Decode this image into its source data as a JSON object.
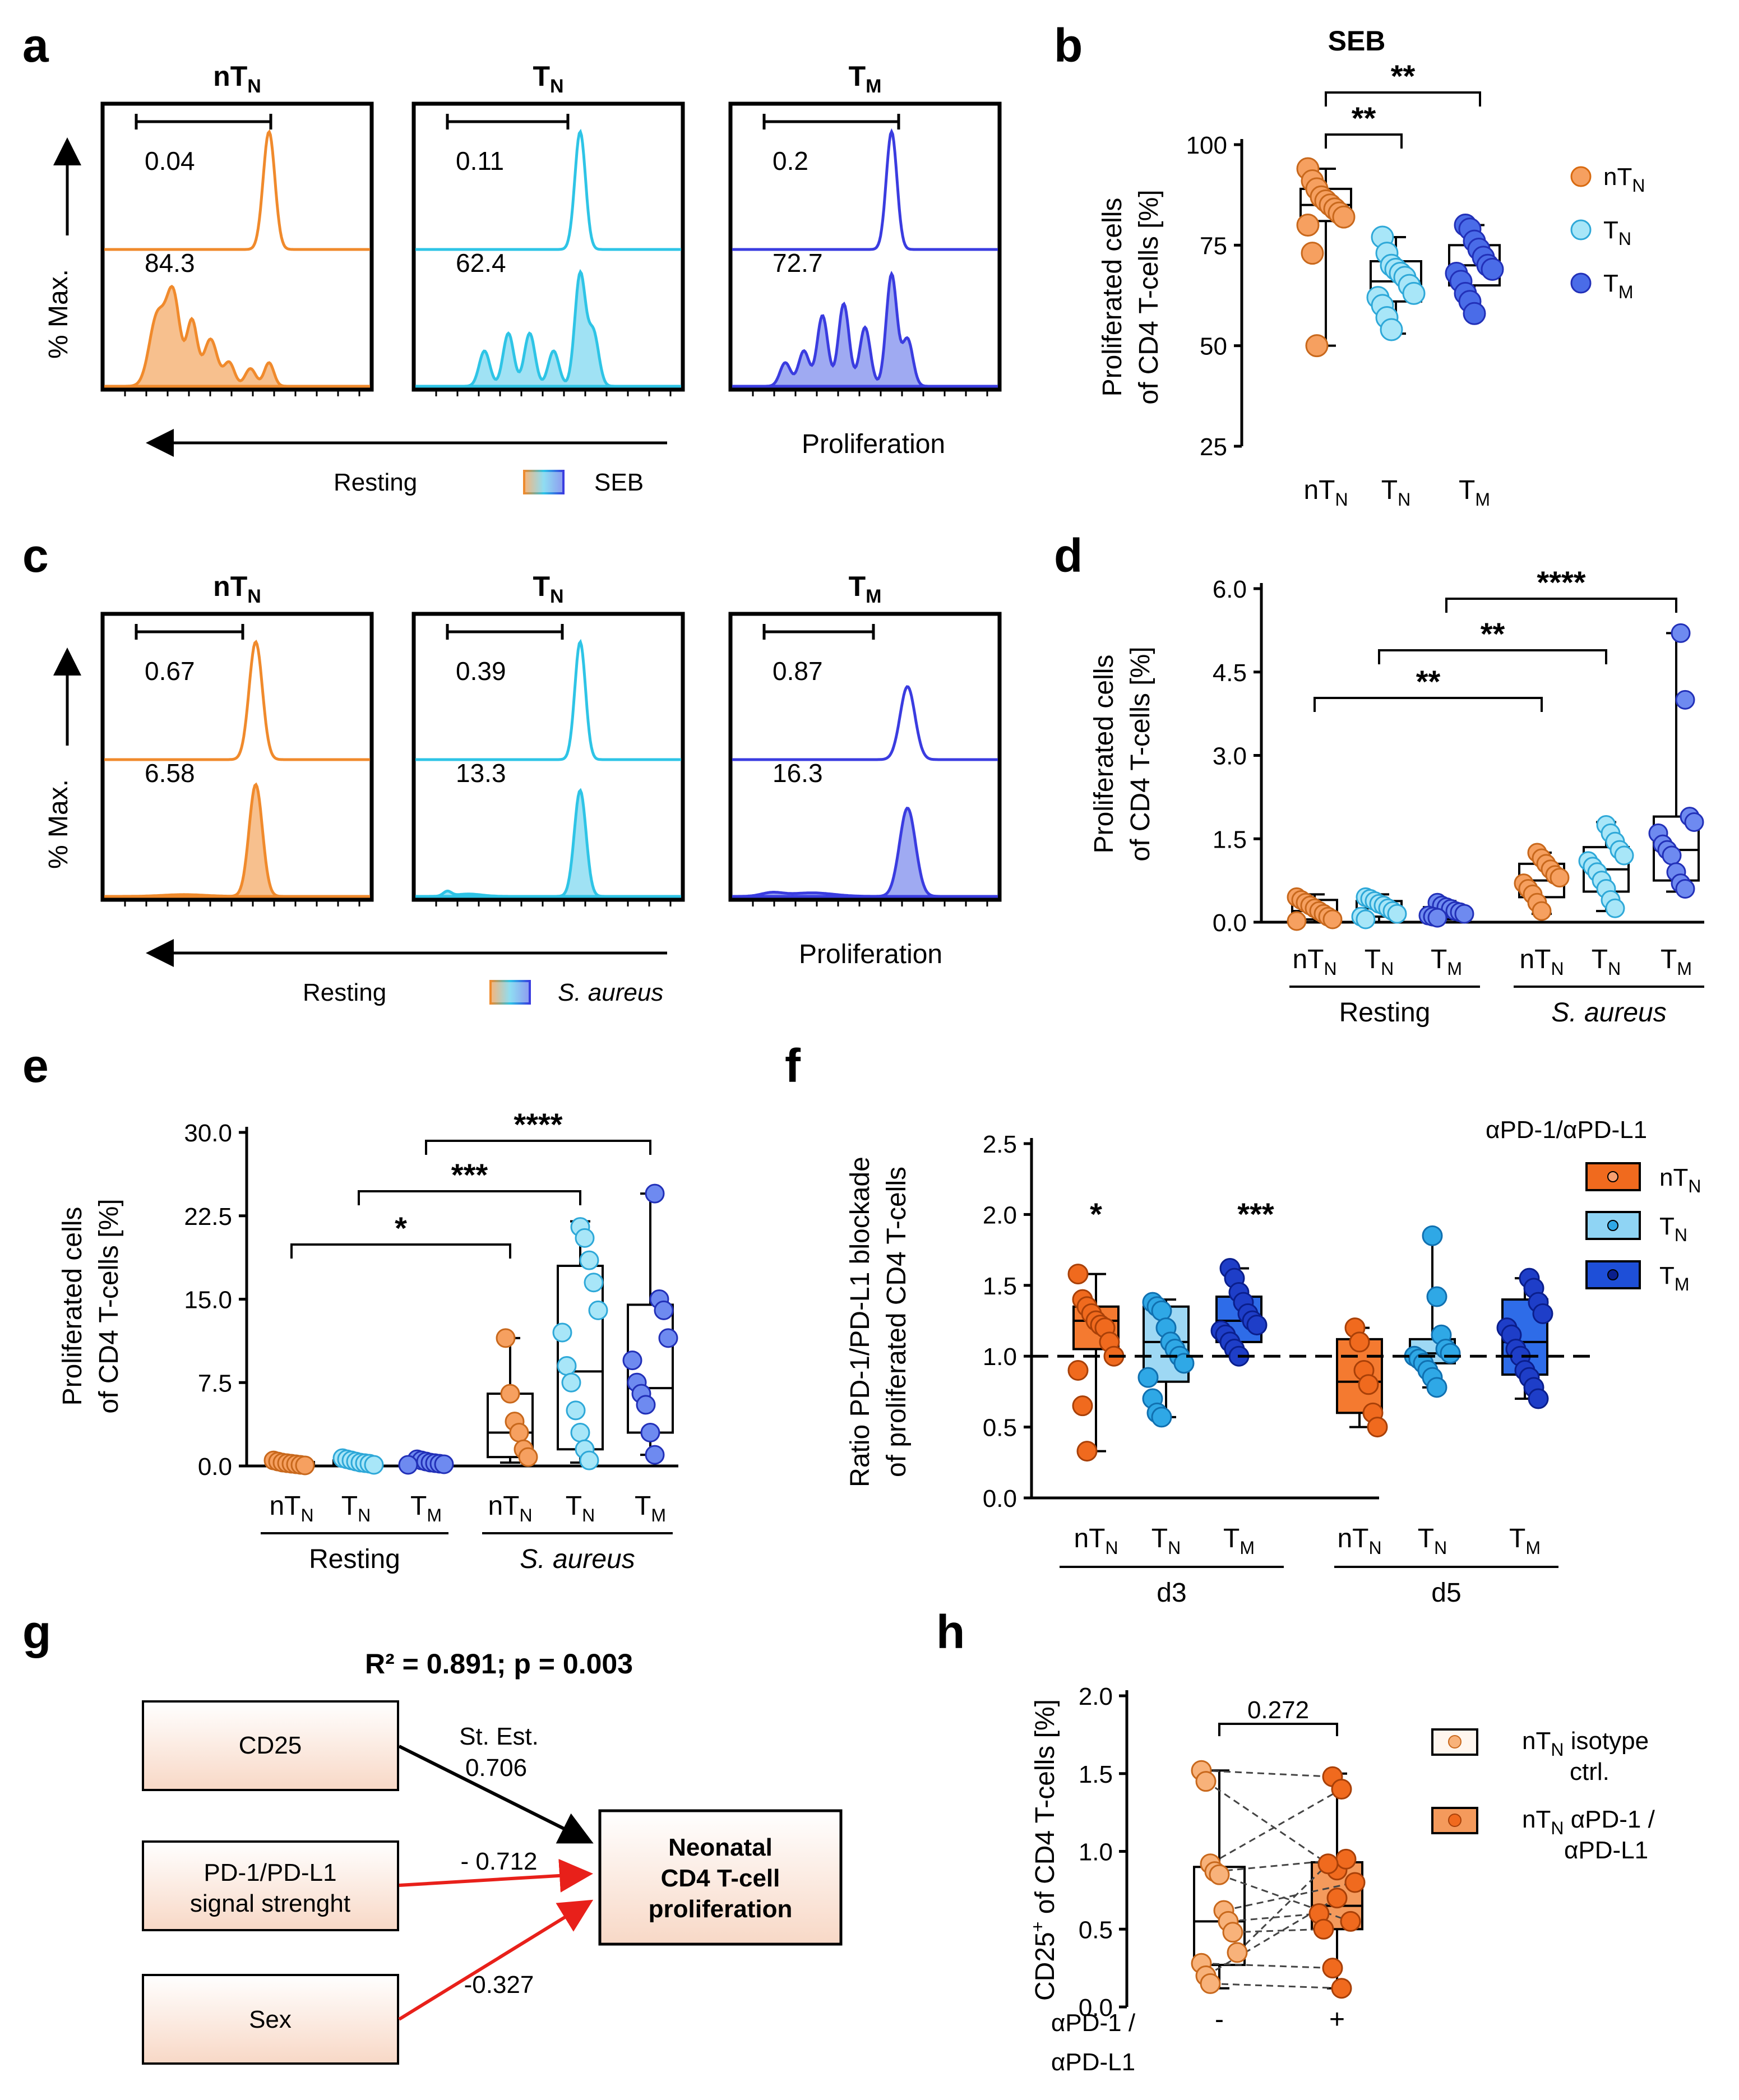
{
  "colors": {
    "nTN": "#F08A2C",
    "nTN_fill": "#F6B57A",
    "TN": "#2EC4E6",
    "TN_fill": "#8FDDF2",
    "TM": "#3A3CE0",
    "TM_fill": "#8E9BF0",
    "f_nTN": "#F06A1E",
    "f_TN": "#2FA8E6",
    "f_TM": "#1E4FD8",
    "red": "#E8201A",
    "boxfill": "#FBE6DA"
  },
  "labels": {
    "a": "a",
    "b": "b",
    "c": "c",
    "d": "d",
    "e": "e",
    "f": "f",
    "g": "g",
    "h": "h",
    "pct_max": "% Max.",
    "proliferation": "Proliferation",
    "resting": "Resting",
    "seb": "SEB",
    "saureus": "S. aureus",
    "y_prolif_1": "Proliferated cells",
    "y_prolif_2": "of CD4 T-cells [%]",
    "y_f_1": "Ratio PD-1/PD-L1 blockade",
    "y_f_2": "of proliferated CD4 T-cells",
    "f_legend_title": "αPD-1/αPD-L1",
    "d3": "d3",
    "d5": "d5",
    "h_y_main": "of CD4 T-cells [%]",
    "h_x_1": "αPD-1 /",
    "h_x_2": "αPD-L1",
    "h_minus": "-",
    "h_plus": "+",
    "h_leg1_a": "nT",
    "h_leg1_b": " isotype",
    "h_leg1_c": "ctrl.",
    "h_leg2_a": "nT",
    "h_leg2_b": " αPD-1 /",
    "h_leg2_c": "αPD-L1",
    "h_p": "0.272",
    "sub_N": "N",
    "sub_M": "M"
  },
  "panel_a": {
    "titles": [
      "nT",
      "T",
      "T"
    ],
    "subs": [
      "N",
      "N",
      "M"
    ],
    "upper_values": [
      "0.04",
      "0.11",
      "0.2"
    ],
    "lower_values": [
      "84.3",
      "62.4",
      "72.7"
    ],
    "condition": "SEB"
  },
  "panel_b": {
    "title": "SEB",
    "stars": [
      "**",
      "**"
    ],
    "legend": [
      "nT",
      "T",
      "T"
    ]
  },
  "panel_c": {
    "titles": [
      "nT",
      "T",
      "T"
    ],
    "subs": [
      "N",
      "N",
      "M"
    ],
    "upper_values": [
      "0.67",
      "0.39",
      "0.87"
    ],
    "lower_values": [
      "6.58",
      "13.3",
      "16.3"
    ],
    "condition": "S. aureus"
  },
  "panel_d": {
    "stars": [
      "**",
      "**",
      "****"
    ]
  },
  "panel_e": {
    "stars": [
      "*",
      "***",
      "****"
    ]
  },
  "panel_f": {
    "stars": [
      "*",
      "***"
    ]
  },
  "panel_g": {
    "header": "R² = 0.891; p = 0.003",
    "box1": "CD25",
    "box2a": "PD-1/PD-L1",
    "box2b": "signal strenght",
    "box3": "Sex",
    "target1": "Neonatal",
    "target2": "CD4  T-cell",
    "target3": "proliferation",
    "est_label": "St. Est.",
    "est1": "0.706",
    "est2": "- 0.712",
    "est3": "-0.327"
  },
  "chart_data": [
    {
      "id": "b",
      "type": "box",
      "title": "SEB",
      "ylabel": "Proliferated cells of CD4 T-cells [%]",
      "categories": [
        "nTN",
        "TN",
        "TM"
      ],
      "ylim": [
        25,
        100
      ],
      "yticks": [
        "25",
        "50",
        "75",
        "100"
      ],
      "series": [
        {
          "name": "nTN",
          "values": [
            94,
            91,
            89,
            87,
            86,
            85,
            84,
            83,
            82,
            80,
            73,
            50
          ],
          "box": [
            50,
            81,
            85,
            89,
            94
          ]
        },
        {
          "name": "TN",
          "values": [
            77,
            73,
            70,
            69,
            68,
            67,
            65,
            63,
            62,
            60,
            57,
            54
          ],
          "box": [
            53,
            61,
            66,
            71,
            77
          ]
        },
        {
          "name": "TM",
          "values": [
            80,
            79,
            76,
            74,
            72,
            70,
            69,
            68,
            66,
            63,
            61,
            58
          ],
          "box": [
            57,
            65,
            70,
            75,
            80
          ]
        }
      ],
      "comparisons": [
        [
          "nTN",
          "TN",
          "**"
        ],
        [
          "nTN",
          "TM",
          "**"
        ]
      ]
    },
    {
      "id": "d",
      "type": "box",
      "ylabel": "Proliferated cells of CD4 T-cells [%]",
      "groups": [
        "Resting",
        "S. aureus"
      ],
      "categories": [
        "nTN",
        "TN",
        "TM",
        "nTN",
        "TN",
        "TM"
      ],
      "ylim": [
        0,
        6
      ],
      "yticks": [
        "0.0",
        "1.5",
        "3.0",
        "4.5",
        "6.0"
      ],
      "series": [
        {
          "name": "Resting nTN",
          "values": [
            0.45,
            0.4,
            0.35,
            0.3,
            0.25,
            0.2,
            0.15,
            0.1,
            0.05,
            0.02
          ],
          "box": [
            0.0,
            0.05,
            0.2,
            0.4,
            0.5
          ]
        },
        {
          "name": "Resting TN",
          "values": [
            0.45,
            0.42,
            0.38,
            0.33,
            0.3,
            0.25,
            0.2,
            0.15,
            0.1,
            0.05
          ],
          "box": [
            0.0,
            0.1,
            0.25,
            0.38,
            0.5
          ]
        },
        {
          "name": "Resting TM",
          "values": [
            0.35,
            0.3,
            0.27,
            0.24,
            0.2,
            0.18,
            0.15,
            0.12,
            0.1,
            0.08
          ],
          "box": [
            0.05,
            0.1,
            0.18,
            0.27,
            0.38
          ]
        },
        {
          "name": "S. aureus nTN",
          "values": [
            1.25,
            1.15,
            1.05,
            0.95,
            0.85,
            0.8,
            0.7,
            0.6,
            0.5,
            0.35,
            0.2
          ],
          "box": [
            0.15,
            0.45,
            0.75,
            1.05,
            1.25
          ]
        },
        {
          "name": "S. aureus TN",
          "values": [
            1.75,
            1.6,
            1.45,
            1.3,
            1.2,
            1.1,
            1.0,
            0.9,
            0.75,
            0.6,
            0.4,
            0.25
          ],
          "box": [
            0.2,
            0.55,
            0.95,
            1.35,
            1.8
          ]
        },
        {
          "name": "S. aureus TM",
          "values": [
            5.2,
            4.0,
            1.9,
            1.8,
            1.6,
            1.4,
            1.3,
            1.2,
            0.9,
            0.7,
            0.6
          ],
          "box": [
            0.55,
            0.75,
            1.3,
            1.9,
            5.2
          ]
        }
      ],
      "comparisons": [
        [
          "Resting nTN",
          "S. aureus nTN",
          "**"
        ],
        [
          "Resting TN",
          "S. aureus TN",
          "**"
        ],
        [
          "Resting TM",
          "S. aureus TM",
          "****"
        ]
      ]
    },
    {
      "id": "e",
      "type": "box",
      "ylabel": "Proliferated cells of CD4 T-cells [%]",
      "groups": [
        "Resting",
        "S. aureus"
      ],
      "categories": [
        "nTN",
        "TN",
        "TM",
        "nTN",
        "TN",
        "TM"
      ],
      "ylim": [
        0,
        30
      ],
      "yticks": [
        "0.0",
        "7.5",
        "15.0",
        "22.5",
        "30.0"
      ],
      "series": [
        {
          "name": "Resting nTN",
          "values": [
            0.5,
            0.4,
            0.3,
            0.25,
            0.2,
            0.15,
            0.1,
            0.05
          ],
          "box": [
            0.0,
            0.1,
            0.2,
            0.35,
            0.6
          ]
        },
        {
          "name": "Resting TN",
          "values": [
            0.7,
            0.6,
            0.5,
            0.4,
            0.3,
            0.25,
            0.2,
            0.1
          ],
          "box": [
            0.05,
            0.15,
            0.3,
            0.5,
            0.8
          ]
        },
        {
          "name": "Resting TM",
          "values": [
            0.6,
            0.5,
            0.4,
            0.3,
            0.25,
            0.2,
            0.15,
            0.1
          ],
          "box": [
            0.05,
            0.1,
            0.25,
            0.4,
            0.6
          ]
        },
        {
          "name": "S. aureus nTN",
          "values": [
            11.5,
            6.5,
            4.0,
            3.0,
            1.5,
            0.8
          ],
          "box": [
            0.3,
            0.8,
            3.0,
            6.5,
            11.5
          ]
        },
        {
          "name": "S. aureus TN",
          "values": [
            21.5,
            20.5,
            18.5,
            16.5,
            14.0,
            12.0,
            9.0,
            7.5,
            5.0,
            3.0,
            1.5,
            0.5
          ],
          "box": [
            0.3,
            1.5,
            8.5,
            18.0,
            22.0
          ]
        },
        {
          "name": "S. aureus TM",
          "values": [
            24.5,
            15.0,
            14.0,
            11.5,
            9.5,
            7.5,
            6.5,
            5.5,
            3.0,
            1.0
          ],
          "box": [
            1.0,
            3.0,
            7.0,
            14.5,
            24.5
          ]
        }
      ],
      "comparisons": [
        [
          "Resting nTN",
          "S. aureus nTN",
          "*"
        ],
        [
          "Resting TN",
          "S. aureus TN",
          "***"
        ],
        [
          "Resting TM",
          "S. aureus TM",
          "****"
        ]
      ]
    },
    {
      "id": "f",
      "type": "box",
      "ylabel": "Ratio PD-1/PD-L1 blockade of proliferated CD4 T-cells",
      "groups": [
        "d3",
        "d5"
      ],
      "categories": [
        "nTN",
        "TN",
        "TM",
        "nTN",
        "TN",
        "TM"
      ],
      "ylim": [
        0,
        2.5
      ],
      "yticks": [
        "0.0",
        "0.5",
        "1.0",
        "1.5",
        "2.0",
        "2.5"
      ],
      "reference_line": 1.0,
      "legend_title": "αPD-1/αPD-L1",
      "series": [
        {
          "name": "d3 nTN",
          "values": [
            1.58,
            1.4,
            1.35,
            1.3,
            1.25,
            1.22,
            1.2,
            1.1,
            1.0,
            0.9,
            0.65,
            0.33
          ],
          "box": [
            0.33,
            1.05,
            1.25,
            1.35,
            1.58
          ]
        },
        {
          "name": "d3 TN",
          "values": [
            1.38,
            1.35,
            1.32,
            1.2,
            1.1,
            1.05,
            1.0,
            0.95,
            0.85,
            0.7,
            0.6,
            0.57
          ],
          "box": [
            0.57,
            0.82,
            1.1,
            1.35,
            1.4
          ]
        },
        {
          "name": "d3 TM",
          "values": [
            1.62,
            1.55,
            1.45,
            1.38,
            1.3,
            1.25,
            1.22,
            1.18,
            1.15,
            1.1,
            1.05,
            1.0
          ],
          "box": [
            1.0,
            1.1,
            1.25,
            1.42,
            1.62
          ]
        },
        {
          "name": "d5 nTN",
          "values": [
            1.2,
            1.1,
            0.9,
            0.8,
            0.6,
            0.5
          ],
          "box": [
            0.5,
            0.6,
            0.82,
            1.12,
            1.2
          ]
        },
        {
          "name": "d5 TN",
          "values": [
            1.85,
            1.42,
            1.15,
            1.05,
            1.02,
            1.0,
            0.98,
            0.95,
            0.9,
            0.85,
            0.78
          ],
          "box": [
            0.78,
            0.95,
            1.02,
            1.12,
            1.85
          ]
        },
        {
          "name": "d5 TM",
          "values": [
            1.55,
            1.48,
            1.38,
            1.3,
            1.2,
            1.15,
            1.05,
            1.0,
            0.9,
            0.85,
            0.78,
            0.7
          ],
          "box": [
            0.7,
            0.87,
            1.1,
            1.4,
            1.55
          ]
        }
      ],
      "significance": [
        [
          "d3 nTN",
          "*"
        ],
        [
          "d3 TM",
          "***"
        ]
      ]
    },
    {
      "id": "h",
      "type": "paired_box",
      "ylabel": "CD25+ of CD4 T-cells [%]",
      "categories": [
        "-",
        "+"
      ],
      "ylim": [
        0,
        2
      ],
      "yticks": [
        "0.0",
        "0.5",
        "1.0",
        "1.5",
        "2.0"
      ],
      "p_value": "0.272",
      "pairs": [
        [
          1.52,
          1.48
        ],
        [
          1.45,
          0.88
        ],
        [
          0.92,
          1.4
        ],
        [
          0.87,
          0.95
        ],
        [
          0.85,
          0.55
        ],
        [
          0.62,
          0.8
        ],
        [
          0.55,
          0.6
        ],
        [
          0.48,
          0.5
        ],
        [
          0.35,
          0.92
        ],
        [
          0.28,
          0.25
        ],
        [
          0.2,
          0.7
        ],
        [
          0.15,
          0.12
        ]
      ],
      "series": [
        {
          "name": "nTN isotype ctrl.",
          "box": [
            0.12,
            0.27,
            0.55,
            0.9,
            1.52
          ]
        },
        {
          "name": "nTN αPD-1 / αPD-L1",
          "box": [
            0.12,
            0.5,
            0.65,
            0.93,
            1.5
          ]
        }
      ]
    }
  ]
}
